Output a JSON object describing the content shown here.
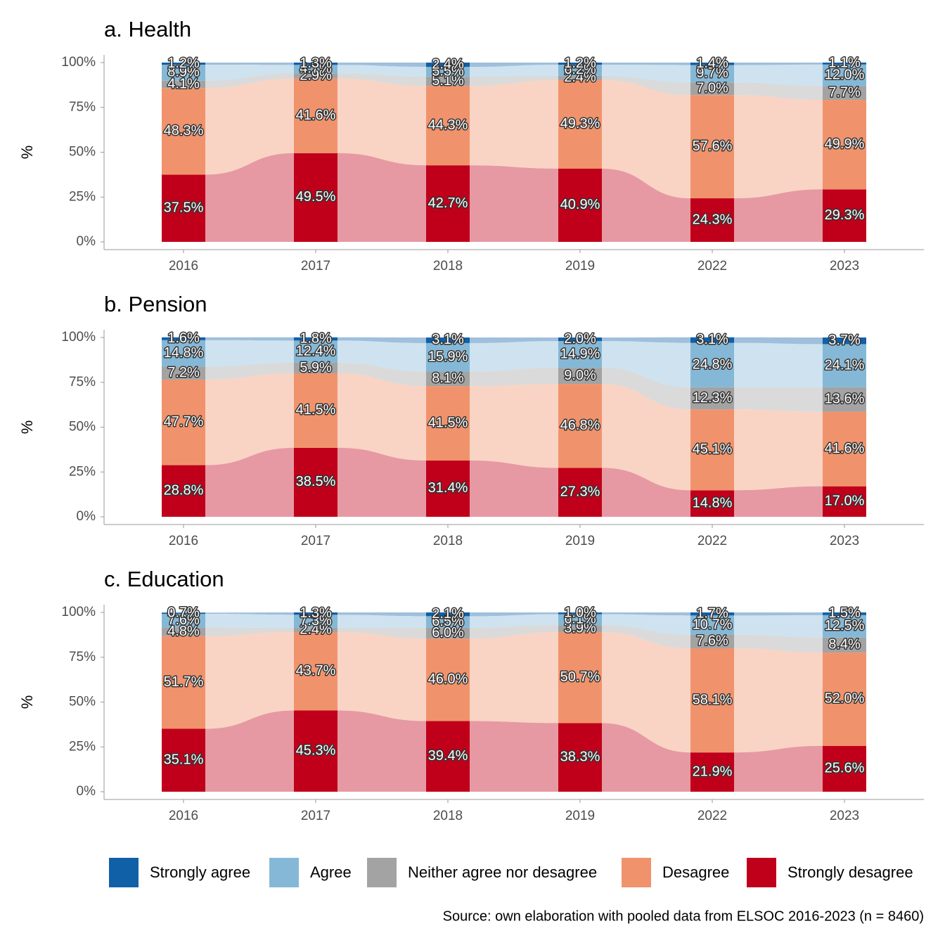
{
  "chart_data": [
    {
      "type": "alluvial",
      "title": "a. Health",
      "y_label": "%",
      "categories": [
        "2016",
        "2017",
        "2018",
        "2019",
        "2022",
        "2023"
      ],
      "ylim": [
        0,
        100
      ],
      "yticks": [
        {
          "value": 0,
          "label": "0%"
        },
        {
          "value": 25,
          "label": "25%"
        },
        {
          "value": 50,
          "label": "50%"
        },
        {
          "value": 75,
          "label": "75%"
        },
        {
          "value": 100,
          "label": "100%"
        }
      ],
      "series": [
        {
          "name": "Strongly agree",
          "color": "#1060a8",
          "values": [
            1.2,
            1.3,
            2.4,
            1.2,
            1.4,
            1.1
          ],
          "value_labels": [
            "1.2%",
            "1.3%",
            "2.4%",
            "1.2%",
            "1.4%",
            "1.1%"
          ]
        },
        {
          "name": "Agree",
          "color": "#85b8d6",
          "values": [
            8.9,
            4.7,
            5.5,
            6.2,
            9.7,
            12.0
          ],
          "value_labels": [
            "8.9%",
            "4.7%",
            "5.5%",
            "6.2%",
            "9.7%",
            "12.0%"
          ]
        },
        {
          "name": "Neither agree nor desagree",
          "color": "#a3a3a3",
          "values": [
            4.1,
            2.9,
            5.1,
            2.4,
            7.0,
            7.7
          ],
          "value_labels": [
            "4.1%",
            "2.9%",
            "5.1%",
            "2.4%",
            "7.0%",
            "7.7%"
          ]
        },
        {
          "name": "Desagree",
          "color": "#f0936c",
          "values": [
            48.3,
            41.6,
            44.3,
            49.3,
            57.6,
            49.9
          ],
          "value_labels": [
            "48.3%",
            "41.6%",
            "44.3%",
            "49.3%",
            "57.6%",
            "49.9%"
          ]
        },
        {
          "name": "Strongly desagree",
          "color": "#c0001a",
          "values": [
            37.5,
            49.5,
            42.7,
            40.9,
            24.3,
            29.3
          ],
          "value_labels": [
            "37.5%",
            "49.5%",
            "42.7%",
            "40.9%",
            "24.3%",
            "29.3%"
          ]
        }
      ]
    },
    {
      "type": "alluvial",
      "title": "b. Pension",
      "y_label": "%",
      "categories": [
        "2016",
        "2017",
        "2018",
        "2019",
        "2022",
        "2023"
      ],
      "ylim": [
        0,
        100
      ],
      "yticks": [
        {
          "value": 0,
          "label": "0%"
        },
        {
          "value": 25,
          "label": "25%"
        },
        {
          "value": 50,
          "label": "50%"
        },
        {
          "value": 75,
          "label": "75%"
        },
        {
          "value": 100,
          "label": "100%"
        }
      ],
      "series": [
        {
          "name": "Strongly agree",
          "color": "#1060a8",
          "values": [
            1.6,
            1.8,
            3.1,
            2.0,
            3.1,
            3.7
          ],
          "value_labels": [
            "1.6%",
            "1.8%",
            "3.1%",
            "2.0%",
            "3.1%",
            "3.7%"
          ]
        },
        {
          "name": "Agree",
          "color": "#85b8d6",
          "values": [
            14.8,
            12.4,
            15.9,
            14.9,
            24.8,
            24.1
          ],
          "value_labels": [
            "14.8%",
            "12.4%",
            "15.9%",
            "14.9%",
            "24.8%",
            "24.1%"
          ]
        },
        {
          "name": "Neither agree nor desagree",
          "color": "#a3a3a3",
          "values": [
            7.2,
            5.9,
            8.1,
            9.0,
            12.3,
            13.6
          ],
          "value_labels": [
            "7.2%",
            "5.9%",
            "8.1%",
            "9.0%",
            "12.3%",
            "13.6%"
          ]
        },
        {
          "name": "Desagree",
          "color": "#f0936c",
          "values": [
            47.7,
            41.5,
            41.5,
            46.8,
            45.1,
            41.6
          ],
          "value_labels": [
            "47.7%",
            "41.5%",
            "41.5%",
            "46.8%",
            "45.1%",
            "41.6%"
          ]
        },
        {
          "name": "Strongly desagree",
          "color": "#c0001a",
          "values": [
            28.8,
            38.5,
            31.4,
            27.3,
            14.8,
            17.0
          ],
          "value_labels": [
            "28.8%",
            "38.5%",
            "31.4%",
            "27.3%",
            "14.8%",
            "17.0%"
          ]
        }
      ]
    },
    {
      "type": "alluvial",
      "title": "c. Education",
      "y_label": "%",
      "categories": [
        "2016",
        "2017",
        "2018",
        "2019",
        "2022",
        "2023"
      ],
      "ylim": [
        0,
        100
      ],
      "yticks": [
        {
          "value": 0,
          "label": "0%"
        },
        {
          "value": 25,
          "label": "25%"
        },
        {
          "value": 50,
          "label": "50%"
        },
        {
          "value": 75,
          "label": "75%"
        },
        {
          "value": 100,
          "label": "100%"
        }
      ],
      "series": [
        {
          "name": "Strongly agree",
          "color": "#1060a8",
          "values": [
            0.7,
            1.3,
            2.1,
            1.0,
            1.7,
            1.5
          ],
          "value_labels": [
            "0.7%",
            "1.3%",
            "2.1%",
            "1.0%",
            "1.7%",
            "1.5%"
          ]
        },
        {
          "name": "Agree",
          "color": "#85b8d6",
          "values": [
            7.6,
            7.3,
            6.5,
            6.1,
            10.7,
            12.5
          ],
          "value_labels": [
            "7.6%",
            "7.3%",
            "6.5%",
            "6.1%",
            "10.7%",
            "12.5%"
          ]
        },
        {
          "name": "Neither agree nor desagree",
          "color": "#a3a3a3",
          "values": [
            4.8,
            2.4,
            6.0,
            3.9,
            7.6,
            8.4
          ],
          "value_labels": [
            "4.8%",
            "2.4%",
            "6.0%",
            "3.9%",
            "7.6%",
            "8.4%"
          ]
        },
        {
          "name": "Desagree",
          "color": "#f0936c",
          "values": [
            51.7,
            43.7,
            46.0,
            50.7,
            58.1,
            52.0
          ],
          "value_labels": [
            "51.7%",
            "43.7%",
            "46.0%",
            "50.7%",
            "58.1%",
            "52.0%"
          ]
        },
        {
          "name": "Strongly desagree",
          "color": "#c0001a",
          "values": [
            35.1,
            45.3,
            39.4,
            38.3,
            21.9,
            25.6
          ],
          "value_labels": [
            "35.1%",
            "45.3%",
            "39.4%",
            "38.3%",
            "21.9%",
            "25.6%"
          ]
        }
      ]
    }
  ],
  "source": "Source: own elaboration with pooled data from ELSOC 2016-2023 (n = 8460)"
}
